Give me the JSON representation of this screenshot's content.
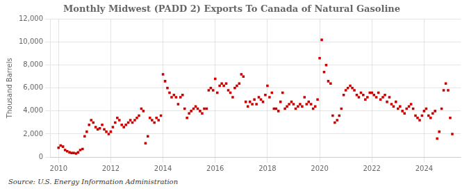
{
  "chart_data": {
    "type": "scatter",
    "title": "Monthly Midwest (PADD 2) Exports To Canada of Natural Gasoline",
    "ylabel": "Thousand Barrels",
    "annotations": [
      "Source: U.S. Energy Information Administration"
    ],
    "color": "#cc0000",
    "marker": "square",
    "grid": true,
    "xlim": [
      2009.7,
      2025.4
    ],
    "xticks": [
      2010,
      2012,
      2014,
      2016,
      2018,
      2020,
      2022,
      2024
    ],
    "ylim": [
      0,
      12000
    ],
    "yticks": [
      0,
      {
        "value": 2000,
        "label": "2,000"
      },
      {
        "value": 4000,
        "label": "4,000"
      },
      {
        "value": 6000,
        "label": "6,000"
      },
      {
        "value": 8000,
        "label": "8,000"
      },
      {
        "value": 10000,
        "label": "10,000"
      },
      {
        "value": 12000,
        "label": "12,000"
      }
    ],
    "x": [
      2010.0,
      2010.08,
      2010.17,
      2010.25,
      2010.33,
      2010.42,
      2010.5,
      2010.58,
      2010.67,
      2010.75,
      2010.83,
      2010.92,
      2011.0,
      2011.08,
      2011.17,
      2011.25,
      2011.33,
      2011.42,
      2011.5,
      2011.58,
      2011.67,
      2011.75,
      2011.83,
      2011.92,
      2012.0,
      2012.08,
      2012.17,
      2012.25,
      2012.33,
      2012.42,
      2012.5,
      2012.58,
      2012.67,
      2012.75,
      2012.83,
      2012.92,
      2013.0,
      2013.08,
      2013.17,
      2013.25,
      2013.33,
      2013.42,
      2013.5,
      2013.58,
      2013.67,
      2013.75,
      2013.83,
      2013.92,
      2014.0,
      2014.08,
      2014.17,
      2014.25,
      2014.33,
      2014.42,
      2014.5,
      2014.58,
      2014.67,
      2014.75,
      2014.83,
      2014.92,
      2015.0,
      2015.08,
      2015.17,
      2015.25,
      2015.33,
      2015.42,
      2015.5,
      2015.58,
      2015.67,
      2015.75,
      2015.83,
      2015.92,
      2016.0,
      2016.08,
      2016.17,
      2016.25,
      2016.33,
      2016.42,
      2016.5,
      2016.58,
      2016.67,
      2016.75,
      2016.83,
      2016.92,
      2017.0,
      2017.08,
      2017.17,
      2017.25,
      2017.33,
      2017.42,
      2017.5,
      2017.58,
      2017.67,
      2017.75,
      2017.83,
      2017.92,
      2018.0,
      2018.08,
      2018.17,
      2018.25,
      2018.33,
      2018.42,
      2018.5,
      2018.58,
      2018.67,
      2018.75,
      2018.83,
      2018.92,
      2019.0,
      2019.08,
      2019.17,
      2019.25,
      2019.33,
      2019.42,
      2019.5,
      2019.58,
      2019.67,
      2019.75,
      2019.83,
      2019.92,
      2020.0,
      2020.08,
      2020.17,
      2020.25,
      2020.33,
      2020.42,
      2020.5,
      2020.58,
      2020.67,
      2020.75,
      2020.83,
      2020.92,
      2021.0,
      2021.08,
      2021.17,
      2021.25,
      2021.33,
      2021.42,
      2021.5,
      2021.58,
      2021.67,
      2021.75,
      2021.83,
      2021.92,
      2022.0,
      2022.08,
      2022.17,
      2022.25,
      2022.33,
      2022.42,
      2022.5,
      2022.58,
      2022.67,
      2022.75,
      2022.83,
      2022.92,
      2023.0,
      2023.08,
      2023.17,
      2023.25,
      2023.33,
      2023.42,
      2023.5,
      2023.58,
      2023.67,
      2023.75,
      2023.83,
      2023.92,
      2024.0,
      2024.08,
      2024.17,
      2024.25,
      2024.33,
      2024.42,
      2024.5,
      2024.58,
      2024.67,
      2024.75,
      2024.83,
      2024.92,
      2025.0,
      2025.08
    ],
    "values": [
      800,
      1000,
      900,
      600,
      500,
      400,
      350,
      350,
      300,
      400,
      600,
      700,
      1800,
      2200,
      2800,
      3200,
      3000,
      2600,
      2400,
      2500,
      2800,
      2400,
      2200,
      2000,
      2200,
      2600,
      3000,
      3400,
      3200,
      2800,
      2600,
      2800,
      3000,
      3200,
      3000,
      3200,
      3400,
      3600,
      4200,
      4000,
      1200,
      1800,
      3400,
      3200,
      3000,
      3400,
      3200,
      3600,
      7200,
      6600,
      6000,
      5600,
      5200,
      5400,
      5200,
      4600,
      5200,
      5400,
      4200,
      3400,
      3800,
      4000,
      4200,
      4400,
      4200,
      4000,
      3800,
      4200,
      4200,
      5800,
      6000,
      5800,
      6800,
      5600,
      6200,
      6400,
      6200,
      6400,
      5800,
      5600,
      5200,
      6000,
      6200,
      6400,
      7200,
      7000,
      4800,
      4400,
      4800,
      4600,
      5000,
      4600,
      5200,
      5000,
      4800,
      5400,
      6200,
      5200,
      5600,
      4200,
      4200,
      4000,
      4800,
      5600,
      4200,
      4400,
      4600,
      4800,
      4600,
      4200,
      4400,
      4600,
      4400,
      5200,
      4600,
      4800,
      4600,
      4200,
      4400,
      5000,
      8600,
      10200,
      7400,
      8000,
      6600,
      6400,
      3600,
      3000,
      3200,
      3600,
      4200,
      5400,
      5800,
      6000,
      6200,
      6000,
      5800,
      5400,
      5200,
      5600,
      5400,
      5000,
      5200,
      5600,
      5600,
      5400,
      5200,
      5600,
      5000,
      5200,
      5400,
      4800,
      5200,
      4600,
      4400,
      4800,
      4200,
      4400,
      4000,
      3800,
      4200,
      4400,
      4600,
      4200,
      3600,
      3400,
      3200,
      3600,
      4000,
      4200,
      3600,
      3400,
      3800,
      4000,
      1600,
      2200,
      4200,
      5800,
      6400,
      5800,
      3400,
      2000
    ]
  }
}
